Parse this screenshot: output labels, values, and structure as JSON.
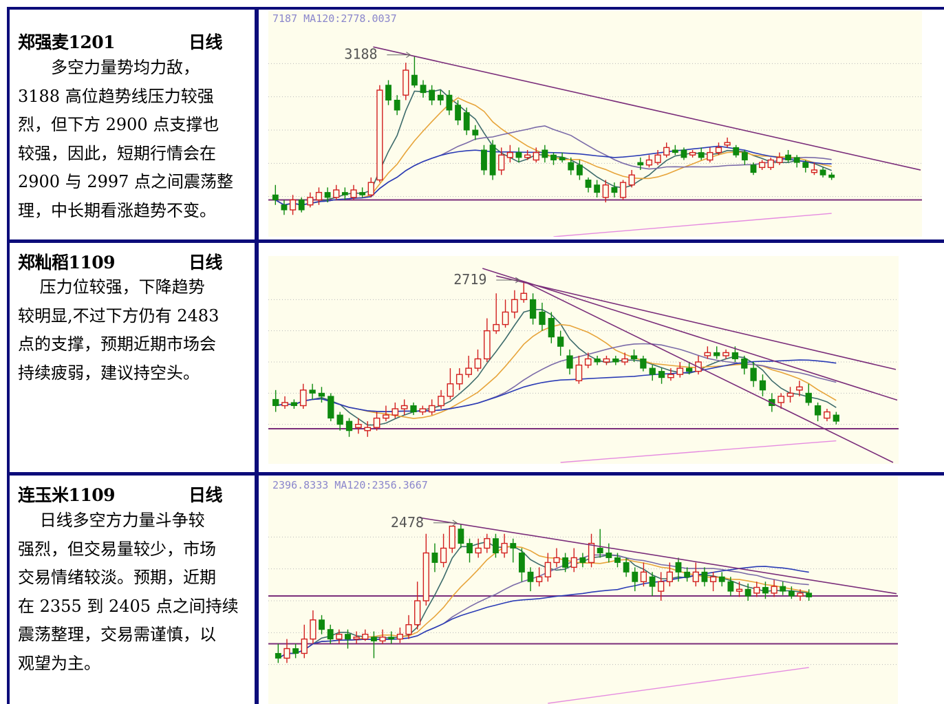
{
  "panels": [
    {
      "code": "郑强麦1201",
      "period": "日线",
      "commentary": "多空力量势均力敌，3188高位趋势线压力较强烈，但下方2900点支撑也较强，因此，短期行情会在2900与2997点之间震荡整理，中长期看涨趋势不变。",
      "lines": [
        "　　多空力量势均力敌，",
        "3188 高位趋势线压力较强",
        "烈，但下方 2900 点支撑也",
        "较强，因此，短期行情会在",
        "2900 与 2997 点之间震荡整",
        "理，中长期看涨趋势不变。"
      ]
    },
    {
      "code": "郑籼稻1109",
      "period": "日线",
      "commentary": "压力位较强，下降趋势较明显，不过下方仍有2483点的支撑，预期近期市场会持续疲弱，建议持空头。",
      "lines": [
        "　 压力位较强，下降趋势",
        "较明显,不过下方仍有 2483",
        "点的支撑，预期近期市场会",
        "持续疲弱，建议持空头。"
      ]
    },
    {
      "code": "连玉米1109",
      "period": "日线",
      "commentary": "日线多空方力量斗争较强烈，但交易量较少，市场交易情绪较淡。预期，近期在2355到2405点之间持续震荡整理，交易需谨慎，以观望为主。",
      "lines": [
        "　 日线多空方力量斗争较",
        "强烈，但交易量较少，市场",
        "交易情绪较淡。预期，近期",
        "在 2355 到 2405 点之间持续",
        "震荡整理，交易需谨慎，以",
        "观望为主。"
      ]
    }
  ],
  "colors": {
    "frame": "#0c0c7a",
    "chart_bg": "#fefdec",
    "up": "#d21e1e",
    "down": "#0e8a0e",
    "trendline": "#7a2d7a",
    "ma_short": "#3d6b6b",
    "ma_mid": "#e7a43a",
    "ma_long": "#7a6aa8",
    "ma_longer": "#2a3bb5",
    "ma_longest": "#e58be0"
  },
  "chart_data": [
    {
      "type": "line",
      "name": "郑强麦1201 日线",
      "header_text": "7187 MA120:2778.0037",
      "peak_label": "3188",
      "peak_value": 3188,
      "support_value": 2900,
      "y_min": 2840,
      "y_max": 3240,
      "candles": [
        [
          2910,
          2900,
          2930,
          2890
        ],
        [
          2890,
          2880,
          2900,
          2870
        ],
        [
          2880,
          2900,
          2910,
          2870
        ],
        [
          2900,
          2880,
          2905,
          2875
        ],
        [
          2890,
          2905,
          2915,
          2885
        ],
        [
          2900,
          2915,
          2925,
          2890
        ],
        [
          2915,
          2905,
          2925,
          2895
        ],
        [
          2905,
          2920,
          2930,
          2900
        ],
        [
          2915,
          2910,
          2925,
          2900
        ],
        [
          2905,
          2920,
          2930,
          2900
        ],
        [
          2915,
          2910,
          2925,
          2905
        ],
        [
          2910,
          2935,
          2945,
          2905
        ],
        [
          2940,
          3120,
          3130,
          2935
        ],
        [
          3130,
          3100,
          3140,
          3090
        ],
        [
          3100,
          3080,
          3110,
          3070
        ],
        [
          3110,
          3160,
          3175,
          3100
        ],
        [
          3150,
          3130,
          3188,
          3125
        ],
        [
          3130,
          3115,
          3140,
          3105
        ],
        [
          3120,
          3100,
          3130,
          3090
        ],
        [
          3110,
          3100,
          3120,
          3090
        ],
        [
          3110,
          3080,
          3120,
          3070
        ],
        [
          3090,
          3060,
          3100,
          3050
        ],
        [
          3075,
          3040,
          3085,
          3030
        ],
        [
          3040,
          3030,
          3050,
          3020
        ],
        [
          3000,
          2960,
          3010,
          2950
        ],
        [
          3010,
          2950,
          3020,
          2940
        ],
        [
          2960,
          2990,
          3005,
          2950
        ],
        [
          2985,
          2995,
          3010,
          2975
        ],
        [
          2995,
          2985,
          3005,
          2975
        ],
        [
          2985,
          2990,
          3000,
          2980
        ],
        [
          2980,
          2995,
          3005,
          2975
        ],
        [
          3000,
          2985,
          3010,
          2975
        ],
        [
          2990,
          2980,
          2995,
          2970
        ],
        [
          2985,
          2980,
          2995,
          2975
        ],
        [
          2975,
          2960,
          2985,
          2950
        ],
        [
          2970,
          2950,
          2980,
          2940
        ],
        [
          2940,
          2925,
          2945,
          2915
        ],
        [
          2930,
          2915,
          2940,
          2905
        ],
        [
          2905,
          2930,
          2940,
          2895
        ],
        [
          2925,
          2915,
          2935,
          2905
        ],
        [
          2905,
          2935,
          2940,
          2900
        ],
        [
          2930,
          2950,
          2960,
          2925
        ],
        [
          2975,
          2970,
          2985,
          2960
        ],
        [
          2970,
          2980,
          2990,
          2965
        ],
        [
          2975,
          2990,
          3000,
          2970
        ],
        [
          2990,
          3005,
          3015,
          2985
        ],
        [
          3000,
          2995,
          3010,
          2990
        ],
        [
          3000,
          2985,
          3005,
          2980
        ],
        [
          2990,
          2995,
          3000,
          2985
        ],
        [
          2995,
          2985,
          3005,
          2980
        ],
        [
          2980,
          2995,
          3005,
          2975
        ],
        [
          2995,
          3005,
          3015,
          2990
        ],
        [
          3010,
          3015,
          3025,
          3005
        ],
        [
          3005,
          2990,
          3010,
          2985
        ],
        [
          2995,
          2980,
          3000,
          2970
        ],
        [
          2970,
          2955,
          2975,
          2950
        ],
        [
          2965,
          2975,
          2980,
          2960
        ],
        [
          2965,
          2980,
          2985,
          2960
        ],
        [
          2975,
          2985,
          2995,
          2970
        ],
        [
          2990,
          2980,
          3000,
          2975
        ],
        [
          2985,
          2975,
          2990,
          2965
        ],
        [
          2975,
          2965,
          2980,
          2955
        ],
        [
          2955,
          2960,
          2975,
          2950
        ],
        [
          2960,
          2950,
          2965,
          2945
        ],
        [
          2950,
          2945,
          2955,
          2940
        ]
      ]
    },
    {
      "type": "line",
      "name": "郑籼稻1109 日线",
      "header_text": "",
      "peak_label": "2719",
      "peak_value": 2719,
      "support_value": 2483,
      "y_min": 2440,
      "y_max": 2740,
      "candles": [
        [
          2530,
          2520,
          2545,
          2510
        ],
        [
          2520,
          2525,
          2535,
          2515
        ],
        [
          2525,
          2520,
          2530,
          2515
        ],
        [
          2520,
          2545,
          2555,
          2515
        ],
        [
          2545,
          2540,
          2555,
          2530
        ],
        [
          2540,
          2535,
          2550,
          2525
        ],
        [
          2535,
          2500,
          2540,
          2495
        ],
        [
          2505,
          2490,
          2510,
          2480
        ],
        [
          2495,
          2480,
          2500,
          2470
        ],
        [
          2485,
          2490,
          2500,
          2475
        ],
        [
          2480,
          2485,
          2495,
          2470
        ],
        [
          2485,
          2500,
          2510,
          2480
        ],
        [
          2500,
          2505,
          2520,
          2495
        ],
        [
          2505,
          2515,
          2525,
          2500
        ],
        [
          2515,
          2520,
          2530,
          2505
        ],
        [
          2520,
          2510,
          2525,
          2505
        ],
        [
          2510,
          2515,
          2520,
          2505
        ],
        [
          2510,
          2520,
          2530,
          2505
        ],
        [
          2520,
          2535,
          2545,
          2515
        ],
        [
          2535,
          2555,
          2580,
          2530
        ],
        [
          2555,
          2570,
          2580,
          2545
        ],
        [
          2570,
          2580,
          2600,
          2565
        ],
        [
          2580,
          2595,
          2610,
          2575
        ],
        [
          2595,
          2640,
          2660,
          2590
        ],
        [
          2640,
          2650,
          2700,
          2635
        ],
        [
          2650,
          2670,
          2690,
          2645
        ],
        [
          2670,
          2690,
          2705,
          2660
        ],
        [
          2690,
          2700,
          2719,
          2685
        ],
        [
          2690,
          2660,
          2700,
          2650
        ],
        [
          2670,
          2650,
          2685,
          2640
        ],
        [
          2660,
          2630,
          2670,
          2620
        ],
        [
          2630,
          2615,
          2640,
          2600
        ],
        [
          2600,
          2580,
          2610,
          2570
        ],
        [
          2560,
          2585,
          2600,
          2555
        ],
        [
          2585,
          2595,
          2605,
          2580
        ],
        [
          2595,
          2590,
          2600,
          2585
        ],
        [
          2590,
          2595,
          2600,
          2585
        ],
        [
          2595,
          2590,
          2600,
          2585
        ],
        [
          2590,
          2595,
          2605,
          2585
        ],
        [
          2600,
          2595,
          2610,
          2590
        ],
        [
          2595,
          2580,
          2600,
          2575
        ],
        [
          2580,
          2570,
          2585,
          2560
        ],
        [
          2575,
          2565,
          2580,
          2555
        ],
        [
          2565,
          2570,
          2580,
          2560
        ],
        [
          2570,
          2580,
          2590,
          2565
        ],
        [
          2580,
          2575,
          2590,
          2570
        ],
        [
          2575,
          2590,
          2600,
          2570
        ],
        [
          2600,
          2605,
          2615,
          2595
        ],
        [
          2605,
          2600,
          2615,
          2595
        ],
        [
          2600,
          2605,
          2610,
          2595
        ],
        [
          2605,
          2595,
          2615,
          2590
        ],
        [
          2595,
          2580,
          2600,
          2570
        ],
        [
          2580,
          2560,
          2590,
          2550
        ],
        [
          2560,
          2545,
          2570,
          2535
        ],
        [
          2530,
          2520,
          2540,
          2510
        ],
        [
          2525,
          2535,
          2540,
          2515
        ],
        [
          2535,
          2540,
          2550,
          2525
        ],
        [
          2545,
          2550,
          2560,
          2535
        ],
        [
          2540,
          2525,
          2555,
          2520
        ],
        [
          2520,
          2505,
          2525,
          2495
        ],
        [
          2500,
          2510,
          2515,
          2495
        ],
        [
          2505,
          2495,
          2510,
          2490
        ]
      ]
    },
    {
      "type": "line",
      "name": "连玉米1109 日线",
      "header_text": "2396.8333 MA120:2356.3667",
      "peak_label": "2478",
      "peak_value": 2478,
      "support_value": 2355,
      "resistance_value": 2405,
      "y_min": 2300,
      "y_max": 2500,
      "candles": [
        [
          2345,
          2340,
          2355,
          2335
        ],
        [
          2340,
          2350,
          2360,
          2335
        ],
        [
          2350,
          2345,
          2355,
          2340
        ],
        [
          2345,
          2360,
          2375,
          2340
        ],
        [
          2360,
          2380,
          2390,
          2355
        ],
        [
          2380,
          2370,
          2385,
          2365
        ],
        [
          2370,
          2360,
          2375,
          2355
        ],
        [
          2360,
          2365,
          2370,
          2355
        ],
        [
          2365,
          2360,
          2370,
          2350
        ],
        [
          2360,
          2362,
          2368,
          2355
        ],
        [
          2360,
          2365,
          2370,
          2358
        ],
        [
          2362,
          2358,
          2368,
          2340
        ],
        [
          2358,
          2362,
          2370,
          2355
        ],
        [
          2362,
          2360,
          2368,
          2355
        ],
        [
          2360,
          2365,
          2372,
          2356
        ],
        [
          2365,
          2375,
          2385,
          2360
        ],
        [
          2375,
          2400,
          2420,
          2370
        ],
        [
          2400,
          2450,
          2470,
          2395
        ],
        [
          2450,
          2440,
          2460,
          2430
        ],
        [
          2440,
          2455,
          2470,
          2435
        ],
        [
          2455,
          2478,
          2478,
          2450
        ],
        [
          2475,
          2460,
          2480,
          2455
        ],
        [
          2460,
          2450,
          2465,
          2440
        ],
        [
          2450,
          2455,
          2465,
          2445
        ],
        [
          2455,
          2465,
          2470,
          2450
        ],
        [
          2465,
          2450,
          2470,
          2445
        ],
        [
          2450,
          2460,
          2470,
          2445
        ],
        [
          2460,
          2455,
          2465,
          2440
        ],
        [
          2450,
          2430,
          2455,
          2420
        ],
        [
          2430,
          2420,
          2435,
          2410
        ],
        [
          2420,
          2425,
          2435,
          2415
        ],
        [
          2425,
          2440,
          2450,
          2420
        ],
        [
          2440,
          2445,
          2455,
          2435
        ],
        [
          2445,
          2435,
          2450,
          2430
        ],
        [
          2435,
          2445,
          2455,
          2430
        ],
        [
          2445,
          2440,
          2450,
          2435
        ],
        [
          2440,
          2460,
          2470,
          2435
        ],
        [
          2455,
          2450,
          2475,
          2445
        ],
        [
          2450,
          2445,
          2460,
          2440
        ],
        [
          2445,
          2440,
          2450,
          2435
        ],
        [
          2440,
          2430,
          2445,
          2425
        ],
        [
          2430,
          2420,
          2435,
          2410
        ],
        [
          2420,
          2430,
          2440,
          2415
        ],
        [
          2425,
          2415,
          2430,
          2405
        ],
        [
          2410,
          2420,
          2430,
          2400
        ],
        [
          2420,
          2430,
          2440,
          2415
        ],
        [
          2440,
          2430,
          2445,
          2420
        ],
        [
          2430,
          2425,
          2435,
          2420
        ],
        [
          2420,
          2430,
          2440,
          2415
        ],
        [
          2430,
          2420,
          2435,
          2415
        ],
        [
          2420,
          2425,
          2430,
          2410
        ],
        [
          2425,
          2420,
          2430,
          2415
        ],
        [
          2420,
          2410,
          2425,
          2405
        ],
        [
          2410,
          2412,
          2420,
          2404
        ],
        [
          2412,
          2405,
          2418,
          2400
        ],
        [
          2408,
          2414,
          2420,
          2404
        ],
        [
          2414,
          2408,
          2420,
          2402
        ],
        [
          2408,
          2415,
          2422,
          2404
        ],
        [
          2415,
          2410,
          2420,
          2406
        ],
        [
          2410,
          2405,
          2415,
          2402
        ],
        [
          2405,
          2408,
          2412,
          2400
        ],
        [
          2408,
          2404,
          2412,
          2400
        ]
      ]
    }
  ]
}
